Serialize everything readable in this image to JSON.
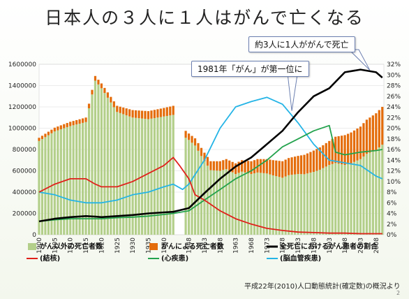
{
  "title": "日本人の３人に１人はがんで亡くなる",
  "callouts": {
    "c1": "約3人に1人ががんで死亡",
    "c2": "1981年「がん」が第一位に"
  },
  "source": "平成22年(2010)人口動態統計(確定数)の概況より",
  "page_number": "2",
  "colors": {
    "other_deaths": "#b3cf8a",
    "cancer_deaths": "#e46c0a",
    "cancer_ratio": "#000000",
    "tuberculosis": "#e0201b",
    "heart_disease": "#23a24d",
    "cerebrovascular": "#24b4e6"
  },
  "chart_data": {
    "type": "bar",
    "xlabel": "",
    "ylabel": "",
    "x_tick_labels": [
      "1900",
      "1905",
      "1910",
      "1915",
      "1920",
      "1925",
      "1930",
      "1935",
      "1940",
      "1948",
      "1953",
      "1958",
      "1963",
      "1968",
      "1973",
      "1978",
      "1983",
      "1988",
      "1993",
      "1998",
      "2003",
      "2008"
    ],
    "y_left_ticks": [
      "0",
      "200000",
      "400000",
      "600000",
      "800000",
      "1000000",
      "1200000",
      "1400000",
      "1600000"
    ],
    "y_right_ticks": [
      "0%",
      "2%",
      "4%",
      "6%",
      "8%",
      "10%",
      "12%",
      "14%",
      "16%",
      "18%",
      "20%",
      "22%",
      "24%",
      "26%",
      "28%",
      "30%",
      "32%"
    ],
    "ylim_left": [
      0,
      1600000
    ],
    "ylim_right": [
      0,
      32
    ],
    "legend": [
      {
        "key": "other",
        "label": "がん以外の死亡者数",
        "kind": "bar"
      },
      {
        "key": "cancer",
        "label": "がんによる死亡者数",
        "kind": "bar"
      },
      {
        "key": "ratio",
        "label": "全死亡におけるがん患者の割合",
        "kind": "line"
      },
      {
        "key": "tb",
        "label": "(結核)",
        "kind": "line"
      },
      {
        "key": "heart",
        "label": "(心疾患)",
        "kind": "line"
      },
      {
        "key": "stroke",
        "label": "(脳血管疾患)",
        "kind": "line"
      }
    ],
    "legend_position": "bottom",
    "stack_total": {
      "x": [
        1900,
        1905,
        1910,
        1915,
        1918,
        1920,
        1925,
        1930,
        1935,
        1940,
        1943,
        1944,
        1946,
        1948,
        1950,
        1953,
        1955,
        1958,
        1960,
        1963,
        1965,
        1968,
        1970,
        1973,
        1975,
        1978,
        1980,
        1983,
        1985,
        1988,
        1990,
        1993,
        1995,
        1998,
        2000,
        2003,
        2005,
        2008,
        2010
      ],
      "values": [
        910000,
        1005000,
        1060000,
        1100000,
        1490000,
        1420000,
        1210000,
        1170000,
        1160000,
        1190000,
        1210000,
        1000000,
        1000000,
        950000,
        905000,
        770000,
        690000,
        690000,
        710000,
        670000,
        700000,
        690000,
        710000,
        710000,
        700000,
        690000,
        720000,
        740000,
        750000,
        790000,
        820000,
        880000,
        920000,
        935000,
        960000,
        1015000,
        1080000,
        1140000,
        1200000
      ]
    },
    "series": [
      {
        "key": "cancer",
        "name": "がんによる死亡者数",
        "x": [
          1900,
          1910,
          1920,
          1930,
          1940,
          1943,
          1948,
          1953,
          1958,
          1963,
          1968,
          1973,
          1978,
          1983,
          1988,
          1993,
          1998,
          2003,
          2008,
          2010
        ],
        "values": [
          30000,
          40000,
          45000,
          70000,
          80000,
          85000,
          60000,
          80000,
          90000,
          100000,
          120000,
          135000,
          155000,
          170000,
          200000,
          225000,
          280000,
          305000,
          345000,
          355000
        ]
      },
      {
        "key": "ratio",
        "name": "全死亡におけるがん患者の割合",
        "axis": "right",
        "x": [
          1900,
          1905,
          1910,
          1915,
          1918,
          1920,
          1925,
          1930,
          1935,
          1940,
          1943,
          1948,
          1953,
          1958,
          1963,
          1968,
          1973,
          1978,
          1983,
          1988,
          1993,
          1998,
          2003,
          2008,
          2010
        ],
        "values": [
          2.5,
          3.0,
          3.3,
          3.5,
          3.4,
          3.3,
          3.5,
          3.7,
          4.0,
          4.2,
          4.3,
          5.0,
          7.8,
          10.5,
          12.8,
          14.5,
          17.0,
          19.5,
          23.0,
          26.0,
          27.5,
          30.5,
          31.0,
          30.5,
          29.5
        ]
      },
      {
        "key": "tb",
        "name": "(結核)",
        "axis": "right",
        "x": [
          1900,
          1905,
          1910,
          1915,
          1918,
          1920,
          1925,
          1930,
          1935,
          1940,
          1943,
          1945,
          1948,
          1950,
          1953,
          1958,
          1963,
          1968,
          1973,
          1978,
          1983,
          1988,
          1993,
          1998,
          2003,
          2008,
          2010
        ],
        "values": [
          8.0,
          9.5,
          10.5,
          10.5,
          9.5,
          9.0,
          9.0,
          10.0,
          11.5,
          13.0,
          14.5,
          13.0,
          10.5,
          7.5,
          6.5,
          4.5,
          3.0,
          2.0,
          1.2,
          0.8,
          0.5,
          0.4,
          0.3,
          0.3,
          0.2,
          0.2,
          0.2
        ]
      },
      {
        "key": "heart",
        "name": "(心疾患)",
        "axis": "right",
        "x": [
          1900,
          1905,
          1910,
          1915,
          1920,
          1925,
          1930,
          1935,
          1940,
          1943,
          1948,
          1953,
          1958,
          1963,
          1968,
          1973,
          1978,
          1983,
          1988,
          1993,
          1995,
          1998,
          2003,
          2008,
          2010
        ],
        "values": [
          2.5,
          2.8,
          3.0,
          3.0,
          3.0,
          3.2,
          3.3,
          3.5,
          3.8,
          4.0,
          4.5,
          6.5,
          8.5,
          10.5,
          12.0,
          14.0,
          16.5,
          18.0,
          19.5,
          20.5,
          15.5,
          15.0,
          15.5,
          15.8,
          16.0
        ]
      },
      {
        "key": "stroke",
        "name": "(脳血管疾患)",
        "axis": "right",
        "x": [
          1900,
          1905,
          1910,
          1915,
          1920,
          1925,
          1930,
          1935,
          1940,
          1943,
          1946,
          1948,
          1953,
          1958,
          1963,
          1968,
          1973,
          1978,
          1983,
          1988,
          1993,
          1998,
          2003,
          2008,
          2010
        ],
        "values": [
          8.0,
          7.5,
          6.5,
          6.0,
          6.0,
          6.5,
          7.5,
          8.0,
          9.0,
          9.5,
          8.5,
          9.5,
          14.0,
          20.0,
          24.0,
          25.0,
          25.8,
          24.5,
          21.0,
          17.0,
          14.0,
          13.5,
          13.0,
          11.0,
          10.5
        ]
      }
    ]
  }
}
